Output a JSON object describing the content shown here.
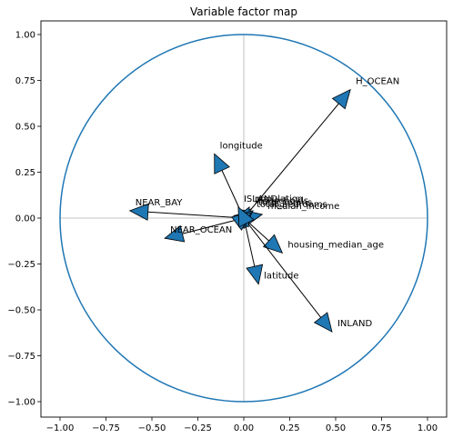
{
  "chart_data": {
    "type": "scatter",
    "title": "Variable factor map",
    "xlabel": "",
    "ylabel": "",
    "xlim": [
      -1.0,
      1.0
    ],
    "ylim": [
      -1.0,
      1.0
    ],
    "x_ticks": [
      "−1.00",
      "−0.75",
      "−0.50",
      "−0.25",
      "0.00",
      "0.25",
      "0.50",
      "0.75",
      "1.00"
    ],
    "x_tick_values": [
      -1.0,
      -0.75,
      -0.5,
      -0.25,
      0.0,
      0.25,
      0.5,
      0.75,
      1.0
    ],
    "y_ticks": [
      "1.00",
      "0.75",
      "0.50",
      "0.25",
      "0.00",
      "−0.25",
      "−0.50",
      "−0.75",
      "−1.00"
    ],
    "y_tick_values": [
      1.0,
      0.75,
      0.5,
      0.25,
      0.0,
      -0.25,
      -0.5,
      -0.75,
      -1.0
    ],
    "circle_color": "#1f77b4",
    "arrow_color": "#1f77b4",
    "grid": false,
    "unit_circle": true,
    "variables": [
      {
        "name": "H_OCEAN",
        "x": 0.58,
        "y": 0.7
      },
      {
        "name": "longitude",
        "x": -0.16,
        "y": 0.35
      },
      {
        "name": "NEAR_BAY",
        "x": -0.62,
        "y": 0.04
      },
      {
        "name": "NEAR_OCEAN",
        "x": -0.43,
        "y": -0.11
      },
      {
        "name": "housing_median_age",
        "x": 0.21,
        "y": -0.19
      },
      {
        "name": "latitude",
        "x": 0.08,
        "y": -0.36
      },
      {
        "name": "INLAND",
        "x": 0.48,
        "y": -0.62
      },
      {
        "name": "median_income",
        "x": 0.1,
        "y": 0.02
      },
      {
        "name": "households",
        "x": 0.04,
        "y": 0.05
      },
      {
        "name": "population",
        "x": 0.03,
        "y": 0.06
      },
      {
        "name": "total_rooms",
        "x": 0.05,
        "y": 0.04
      },
      {
        "name": "total_bedrooms",
        "x": 0.04,
        "y": 0.03
      },
      {
        "name": "ISLAND",
        "x": -0.03,
        "y": 0.06
      }
    ]
  }
}
